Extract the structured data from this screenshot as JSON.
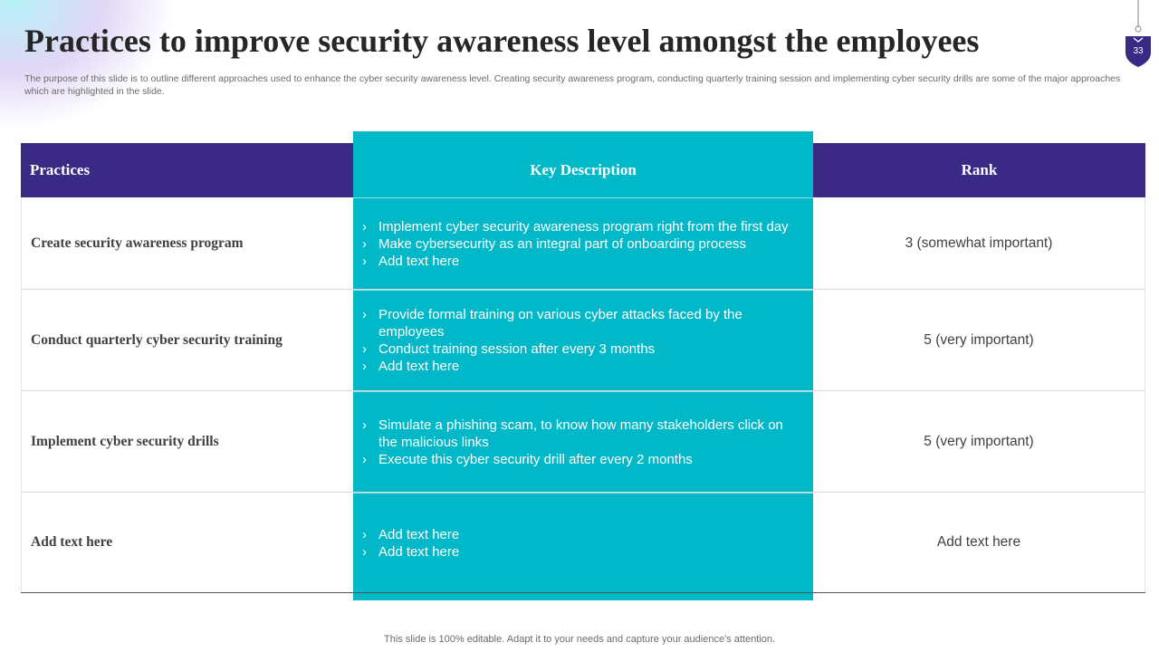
{
  "slide": {
    "title": "Practices to improve security awareness level amongst the employees",
    "subtitle": "The purpose of this slide is to outline different approaches used to enhance the cyber security awareness level. Creating security awareness program, conducting quarterly training session and implementing cyber security drills are some of the major approaches which are highlighted in the slide.",
    "page_number": "33",
    "footer": "This slide is 100% editable. Adapt it to your needs and capture your audience's attention."
  },
  "colors": {
    "header_purple": "#3b2a85",
    "teal": "#00b8c8"
  },
  "table": {
    "headers": {
      "practices": "Practices",
      "description": "Key Description",
      "rank": "Rank"
    },
    "rows": [
      {
        "practice": "Create security awareness program",
        "bullets": [
          "Implement cyber security awareness program right from the first day",
          "Make cybersecurity as an integral part of onboarding process",
          "Add text here"
        ],
        "rank": "3 (somewhat important)"
      },
      {
        "practice": "Conduct quarterly cyber security training",
        "bullets": [
          "Provide formal training on various cyber attacks faced by the employees",
          "Conduct training session after every 3 months",
          "Add text here"
        ],
        "rank": "5 (very important)"
      },
      {
        "practice": "Implement cyber security drills",
        "bullets": [
          "Simulate a phishing scam, to know how many stakeholders click on the malicious links",
          "Execute this cyber security drill after every 2 months"
        ],
        "rank": "5 (very important)"
      },
      {
        "practice": "Add text here",
        "bullets": [
          "Add text here",
          "Add text here"
        ],
        "rank": "Add text here"
      }
    ]
  },
  "icons": {
    "badge": "shield-badge-icon",
    "bullet": "chevron-right-icon"
  }
}
